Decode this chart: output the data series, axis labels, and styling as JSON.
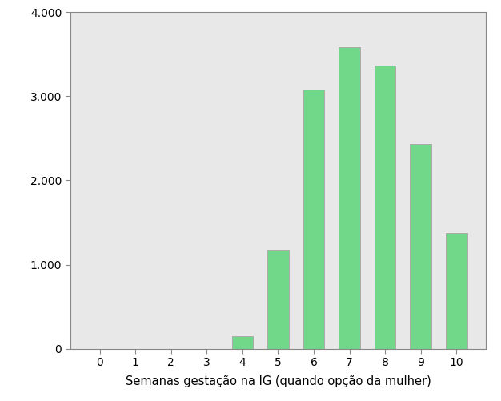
{
  "categories": [
    0,
    1,
    2,
    3,
    4,
    5,
    6,
    7,
    8,
    9,
    10
  ],
  "values": [
    0,
    0,
    0,
    0,
    150,
    1180,
    3080,
    3580,
    3360,
    2430,
    1380
  ],
  "bar_color": "#70D888",
  "bar_edgecolor": "#aaaaaa",
  "xlabel": "Semanas gestação na IG (quando opção da mulher)",
  "ylabel": "",
  "ylim": [
    0,
    4000
  ],
  "yticks": [
    0,
    1000,
    2000,
    3000,
    4000
  ],
  "ytick_labels": [
    "0",
    "1.000",
    "2.000",
    "3.000",
    "4.000"
  ],
  "plot_bg_color": "#E8E8E8",
  "fig_bg_color": "#FFFFFF",
  "bar_width": 0.6,
  "xlabel_fontsize": 10.5,
  "tick_fontsize": 10,
  "spine_color": "#888888"
}
